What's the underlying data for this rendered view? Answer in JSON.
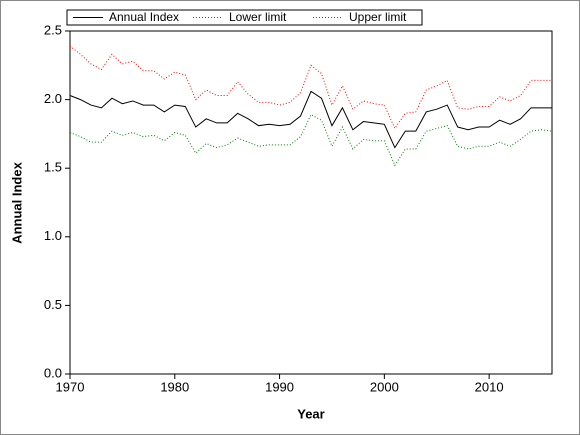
{
  "chart_data": {
    "type": "line",
    "xlabel": "Year",
    "ylabel": "Annual Index",
    "x": [
      1970,
      1971,
      1972,
      1973,
      1974,
      1975,
      1976,
      1977,
      1978,
      1979,
      1980,
      1981,
      1982,
      1983,
      1984,
      1985,
      1986,
      1987,
      1988,
      1989,
      1990,
      1991,
      1992,
      1993,
      1994,
      1995,
      1996,
      1997,
      1998,
      1999,
      2000,
      2001,
      2002,
      2003,
      2004,
      2005,
      2006,
      2007,
      2008,
      2009,
      2010,
      2011,
      2012,
      2013,
      2014,
      2015,
      2016
    ],
    "series": [
      {
        "name": "Annual Index",
        "color": "#000000",
        "dash": "solid",
        "values": [
          2.03,
          2.0,
          1.96,
          1.94,
          2.01,
          1.97,
          1.99,
          1.96,
          1.96,
          1.91,
          1.96,
          1.95,
          1.8,
          1.86,
          1.83,
          1.83,
          1.9,
          1.86,
          1.81,
          1.82,
          1.81,
          1.82,
          1.88,
          2.06,
          2.01,
          1.81,
          1.94,
          1.78,
          1.84,
          1.83,
          1.82,
          1.65,
          1.77,
          1.77,
          1.91,
          1.93,
          1.96,
          1.8,
          1.78,
          1.8,
          1.8,
          1.85,
          1.82,
          1.86,
          1.94,
          1.94,
          1.94
        ]
      },
      {
        "name": "Lower limit",
        "color": "#008000",
        "dash": "dotted",
        "values": [
          1.76,
          1.73,
          1.69,
          1.69,
          1.77,
          1.74,
          1.76,
          1.73,
          1.74,
          1.7,
          1.76,
          1.74,
          1.61,
          1.68,
          1.65,
          1.67,
          1.72,
          1.69,
          1.66,
          1.67,
          1.67,
          1.67,
          1.73,
          1.89,
          1.85,
          1.66,
          1.8,
          1.64,
          1.71,
          1.7,
          1.7,
          1.52,
          1.64,
          1.64,
          1.77,
          1.79,
          1.81,
          1.66,
          1.64,
          1.66,
          1.66,
          1.69,
          1.66,
          1.71,
          1.77,
          1.78,
          1.77
        ]
      },
      {
        "name": "Upper limit",
        "color": "#ff0000",
        "dash": "dotted",
        "values": [
          2.39,
          2.33,
          2.26,
          2.22,
          2.33,
          2.26,
          2.28,
          2.21,
          2.21,
          2.15,
          2.2,
          2.18,
          2.0,
          2.07,
          2.03,
          2.03,
          2.13,
          2.04,
          1.98,
          1.98,
          1.96,
          1.98,
          2.05,
          2.25,
          2.19,
          1.96,
          2.1,
          1.93,
          1.99,
          1.97,
          1.96,
          1.79,
          1.9,
          1.91,
          2.07,
          2.1,
          2.14,
          1.94,
          1.93,
          1.95,
          1.95,
          2.02,
          1.99,
          2.03,
          2.14,
          2.14,
          2.14
        ]
      }
    ],
    "xlim": [
      1970,
      2016
    ],
    "xticks": [
      1970,
      1980,
      1990,
      2000,
      2010
    ],
    "ylim": [
      0,
      2.5
    ],
    "yticks": [
      {
        "value": 0,
        "label": "0.0"
      },
      {
        "value": 0.5,
        "label": "0.5"
      },
      {
        "value": 1,
        "label": "1.0"
      },
      {
        "value": 1.5,
        "label": "1.5"
      },
      {
        "value": 2,
        "label": "2.0"
      },
      {
        "value": 2.5,
        "label": "2.5"
      }
    ],
    "grid": false,
    "legend": "top"
  }
}
